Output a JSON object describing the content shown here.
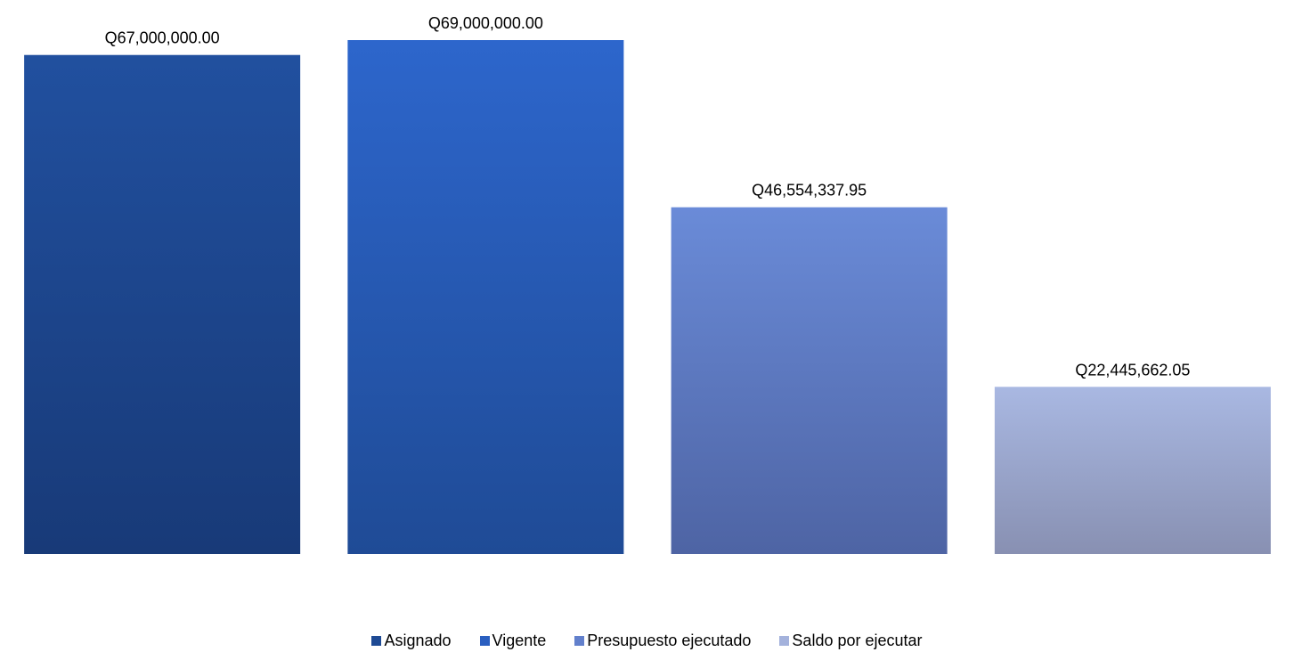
{
  "chart_data": {
    "type": "bar",
    "categories": [
      "Asignado",
      "Vigente",
      "Presupuesto ejecutado",
      "Saldo por ejecutar"
    ],
    "values": [
      67000000.0,
      69000000.0,
      46554337.95,
      22445662.05
    ],
    "data_labels": [
      "Q67,000,000.00",
      "Q69,000,000.00",
      "Q46,554,337.95",
      "Q22,445,662.05"
    ],
    "ylim": [
      0,
      69000000
    ],
    "grid": false,
    "legend_position": "bottom",
    "colors": [
      {
        "top": "#21509f",
        "bottom": "#183a78"
      },
      {
        "top": "#2d66cc",
        "bottom": "#1f4b96"
      },
      {
        "top": "#6a8bd8",
        "bottom": "#4e64a4"
      },
      {
        "top": "#a9b8e2",
        "bottom": "#8890b2"
      }
    ],
    "title": "",
    "xlabel": "",
    "ylabel": ""
  },
  "legend": {
    "items": [
      {
        "label": "Asignado",
        "color": "#1e4a94"
      },
      {
        "label": "Vigente",
        "color": "#2a5fc0"
      },
      {
        "label": "Presupuesto ejecutado",
        "color": "#6280cc"
      },
      {
        "label": "Saldo por ejecutar",
        "color": "#a4b2dc"
      }
    ]
  }
}
